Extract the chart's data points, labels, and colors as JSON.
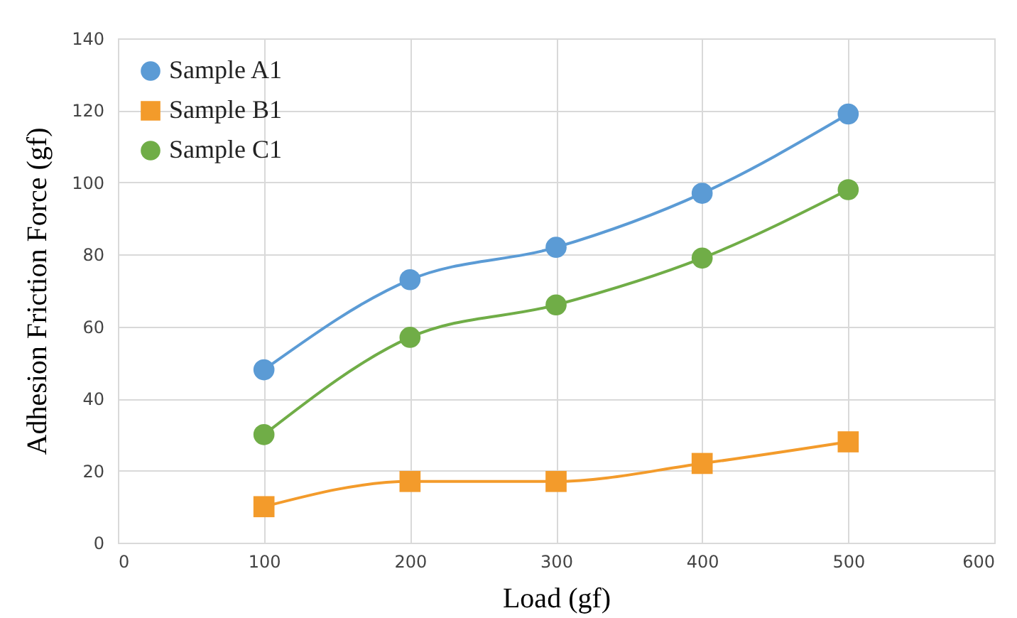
{
  "chart_data": {
    "type": "line",
    "xlabel": "Load (gf)",
    "ylabel": "Adhesion Friction Force (gf)",
    "x": [
      100,
      200,
      300,
      400,
      500
    ],
    "xlim": [
      0,
      600
    ],
    "xticks": [
      0,
      100,
      200,
      300,
      400,
      500,
      600
    ],
    "ylim": [
      0,
      140
    ],
    "yticks": [
      0,
      20,
      40,
      60,
      80,
      100,
      120,
      140
    ],
    "grid": true,
    "legend": "top left",
    "series": [
      {
        "name": "Sample A1",
        "color": "#5b9bd5",
        "marker": "circle",
        "values": [
          48,
          73,
          82,
          97,
          119
        ]
      },
      {
        "name": "Sample B1",
        "color": "#f39b2b",
        "marker": "square",
        "values": [
          10,
          17,
          17,
          22,
          28
        ]
      },
      {
        "name": "Sample C1",
        "color": "#70ad47",
        "marker": "circle",
        "values": [
          30,
          57,
          66,
          79,
          98
        ]
      }
    ]
  }
}
